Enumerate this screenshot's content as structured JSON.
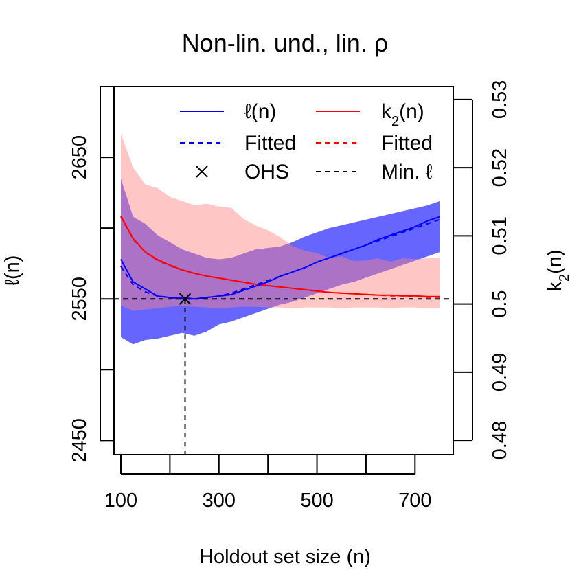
{
  "chart_data": {
    "type": "line",
    "title": "Non-lin. und., lin. ρ",
    "xlabel": "Holdout set size (n)",
    "ylabel_left": "ℓ(n)",
    "ylabel_right_base": "k",
    "ylabel_right_sub": "2",
    "ylabel_right_tail": "(n)",
    "xlim": [
      86,
      778
    ],
    "ylim_left": [
      2440,
      2700
    ],
    "ylim_right": [
      0.4779,
      0.5319
    ],
    "xticks": [
      100,
      200,
      300,
      400,
      500,
      600,
      700
    ],
    "xtick_labels": [
      "100",
      "",
      "300",
      "",
      "500",
      "",
      "700"
    ],
    "yticks_left": [
      2450,
      2500,
      2550,
      2600,
      2650,
      2700
    ],
    "ytick_labels_left": [
      "2450",
      "",
      "2550",
      "",
      "2650",
      ""
    ],
    "yticks_right": [
      0.48,
      0.49,
      0.5,
      0.51,
      0.52,
      0.53
    ],
    "ytick_labels_right": [
      "0.48",
      "0.49",
      "0.5",
      "0.51",
      "0.52",
      "0.53"
    ],
    "x": [
      100,
      125,
      150,
      175,
      200,
      225,
      250,
      275,
      300,
      325,
      350,
      375,
      400,
      425,
      450,
      475,
      500,
      525,
      550,
      575,
      600,
      625,
      650,
      675,
      700,
      725,
      750
    ],
    "series": [
      {
        "name": "ℓ(n)",
        "axis": "left",
        "color": "#0000ff",
        "values": [
          2578,
          2562,
          2557,
          2552,
          2551,
          2551,
          2550,
          2551,
          2552,
          2553,
          2556,
          2559,
          2562,
          2566,
          2569,
          2572,
          2576,
          2579,
          2582,
          2585,
          2588,
          2592,
          2595,
          2598,
          2601,
          2605,
          2608
        ],
        "band_lower": [
          2523,
          2518,
          2521,
          2522,
          2524,
          2526,
          2524,
          2527,
          2532,
          2534,
          2537,
          2540,
          2543,
          2546,
          2548,
          2551,
          2554,
          2557,
          2560,
          2562,
          2565,
          2568,
          2571,
          2574,
          2577,
          2580,
          2583
        ],
        "band_upper": [
          2635,
          2608,
          2603,
          2595,
          2590,
          2585,
          2582,
          2579,
          2578,
          2579,
          2582,
          2585,
          2586,
          2587,
          2590,
          2594,
          2597,
          2600,
          2602,
          2604,
          2606,
          2608,
          2610,
          2612,
          2614,
          2616,
          2619
        ]
      },
      {
        "name": "Fitted",
        "axis": "left",
        "color": "#0000ff",
        "dashed": true,
        "values": [
          2573,
          2560,
          2555,
          2552,
          2551,
          2550,
          2550,
          2551,
          2552,
          2554,
          2557,
          2560,
          2563,
          2566,
          2569,
          2572,
          2576,
          2579,
          2582,
          2585,
          2588,
          2591,
          2594,
          2597,
          2600,
          2603,
          2606
        ]
      },
      {
        "name": "k₂(n)",
        "axis": "right",
        "color": "#ff0000",
        "values": [
          0.5129,
          0.5096,
          0.5076,
          0.5065,
          0.5057,
          0.505,
          0.5045,
          0.5041,
          0.5038,
          0.5035,
          0.5032,
          0.5029,
          0.5027,
          0.5025,
          0.5023,
          0.5021,
          0.5019,
          0.5017,
          0.5016,
          0.5015,
          0.5014,
          0.5013,
          0.5013,
          0.5012,
          0.5012,
          0.5011,
          0.5011
        ],
        "band_lower": [
          0.4998,
          0.499,
          0.4992,
          0.4994,
          0.4996,
          0.4997,
          0.4996,
          0.4995,
          0.4994,
          0.4995,
          0.4996,
          0.4996,
          0.4995,
          0.4995,
          0.4994,
          0.4995,
          0.4995,
          0.4995,
          0.4994,
          0.4995,
          0.4995,
          0.4995,
          0.4994,
          0.4995,
          0.4995,
          0.4994,
          0.4994
        ],
        "band_upper": [
          0.525,
          0.52,
          0.5175,
          0.517,
          0.5157,
          0.5151,
          0.5145,
          0.5147,
          0.5143,
          0.5141,
          0.5125,
          0.5115,
          0.5108,
          0.5098,
          0.5085,
          0.5078,
          0.5075,
          0.5067,
          0.507,
          0.5063,
          0.5064,
          0.5067,
          0.5062,
          0.5067,
          0.5066,
          0.5067,
          0.5068
        ]
      },
      {
        "name": "Fitted",
        "axis": "right",
        "color": "#ff0000",
        "dashed": true,
        "values": [
          0.5128,
          0.5095,
          0.5076,
          0.5064,
          0.5056,
          0.505,
          0.5045,
          0.5041,
          0.5038,
          0.5035,
          0.5032,
          0.5029,
          0.5027,
          0.5025,
          0.5023,
          0.5021,
          0.5019,
          0.5017,
          0.5016,
          0.5015,
          0.5014,
          0.5013,
          0.5012,
          0.5012,
          0.5011,
          0.501,
          0.501
        ]
      }
    ],
    "min_line": {
      "name": "Min. ℓ",
      "value": 2550,
      "color": "#000000"
    },
    "ohs_point": {
      "name": "OHS",
      "x": 231,
      "y": 2550
    },
    "band_colors": {
      "left": "#0000ff",
      "left_opacity": 0.6,
      "right": "#ff8080",
      "right_opacity": 0.45
    },
    "legend_position": "top",
    "grid": false,
    "legend": [
      {
        "label": "ℓ(n)",
        "kind": "line",
        "color": "#0000ff"
      },
      {
        "label_base": "k",
        "label_sub": "2",
        "label_tail": "(n)",
        "kind": "line",
        "color": "#ff0000"
      },
      {
        "label": "Fitted",
        "kind": "dashed",
        "color": "#0000ff"
      },
      {
        "label": "Fitted",
        "kind": "dashed",
        "color": "#ff0000"
      },
      {
        "label": "OHS",
        "kind": "cross",
        "color": "#000000"
      },
      {
        "label": "Min. ℓ",
        "kind": "dashed",
        "color": "#000000"
      }
    ]
  }
}
